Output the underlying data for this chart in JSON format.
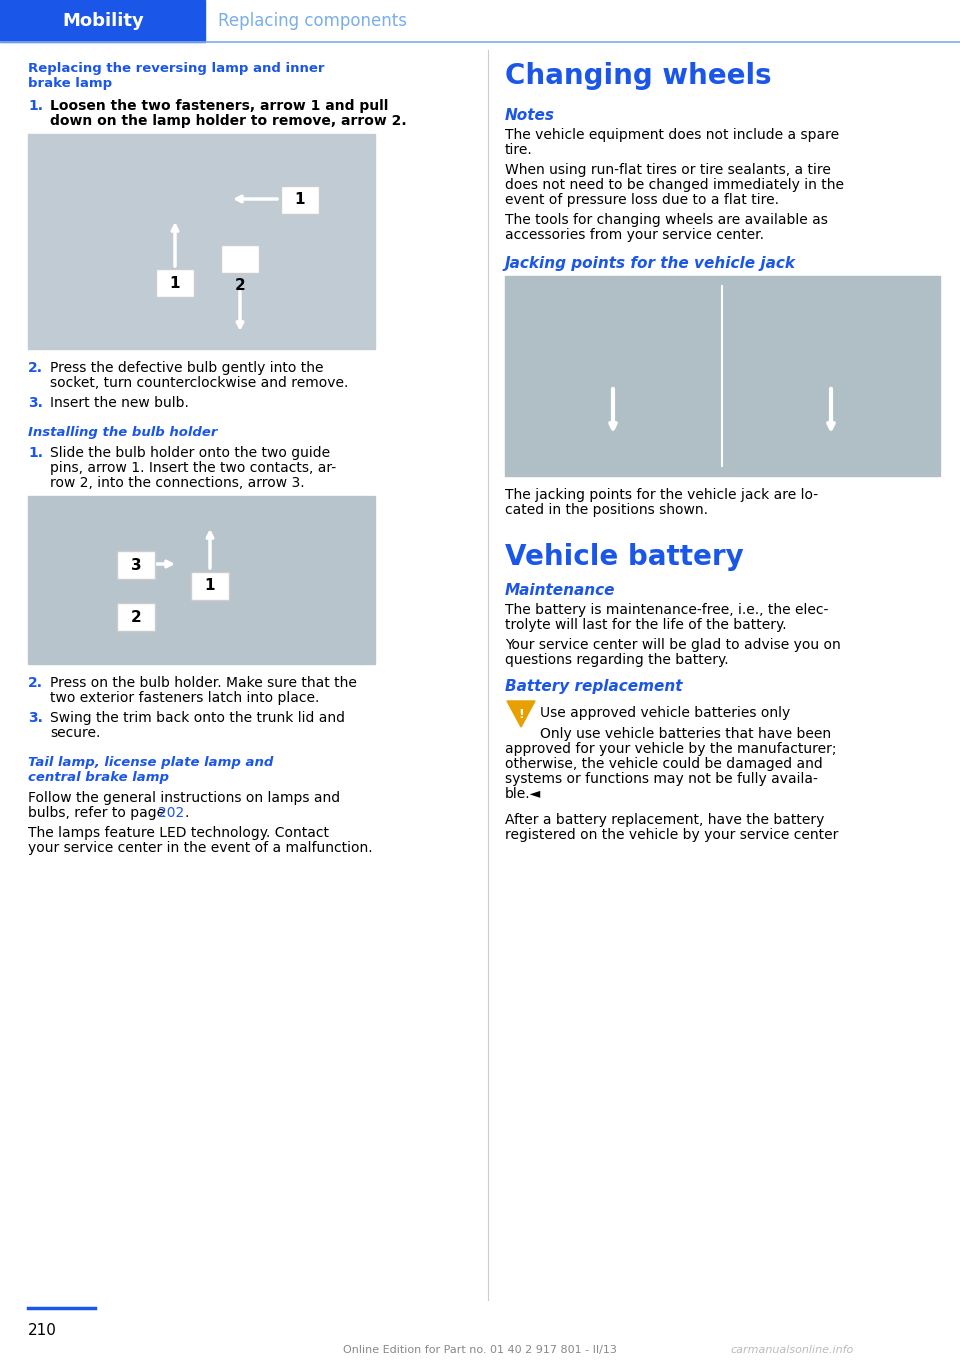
{
  "page_bg": "#ffffff",
  "header_bg": "#1a56e8",
  "header_text_left": "Mobility",
  "header_text_right": "Replacing components",
  "header_text_right_color": "#7aaee8",
  "header_line_color": "#7aaee8",
  "blue_heading_color": "#1a56e8",
  "body_text_color": "#000000",
  "page_number": "210",
  "footer_text": "Online Edition for Part no. 01 40 2 917 801 - II/13",
  "footer_watermark": "carmanualsonline.info"
}
